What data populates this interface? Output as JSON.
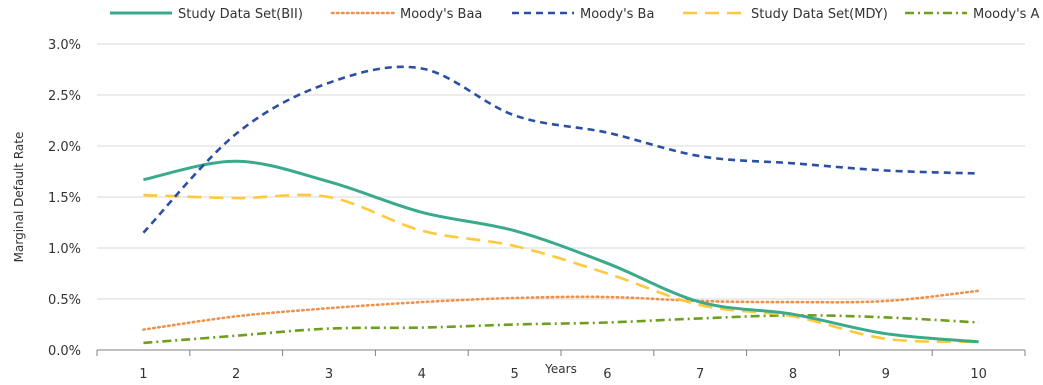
{
  "chart_data": {
    "type": "line",
    "xlabel": "Years",
    "ylabel": "Marginal Default Rate",
    "categories": [
      "1",
      "2",
      "3",
      "4",
      "5",
      "6",
      "7",
      "8",
      "9",
      "10"
    ],
    "ylim": [
      0,
      0.03
    ],
    "yticks": [
      "0.0%",
      "0.5%",
      "1.0%",
      "1.5%",
      "2.0%",
      "2.5%",
      "3.0%"
    ],
    "legend_position": "top",
    "gridlines": "horizontal",
    "series": [
      {
        "name": "Study Data Set(BII)",
        "color": "#3aaa8c",
        "style": "solid",
        "values": [
          0.0167,
          0.0185,
          0.0165,
          0.0135,
          0.0117,
          0.0085,
          0.0047,
          0.0035,
          0.0016,
          0.0008
        ]
      },
      {
        "name": "Moody's Baa",
        "color": "#f0914a",
        "style": "dotted",
        "values": [
          0.002,
          0.0033,
          0.0041,
          0.0047,
          0.0051,
          0.0052,
          0.0048,
          0.0047,
          0.0048,
          0.0058
        ]
      },
      {
        "name": "Moody's Ba",
        "color": "#2b4fa2",
        "style": "dashed",
        "values": [
          0.0115,
          0.0212,
          0.0262,
          0.0276,
          0.023,
          0.0213,
          0.019,
          0.0183,
          0.0176,
          0.0173
        ]
      },
      {
        "name": "Study Data Set(MDY)",
        "color": "#ffc83d",
        "style": "longdash",
        "values": [
          0.0152,
          0.0149,
          0.015,
          0.0117,
          0.0102,
          0.0075,
          0.0044,
          0.0033,
          0.0011,
          0.0008
        ]
      },
      {
        "name": "Moody's A",
        "color": "#6e9e1c",
        "style": "dashdot",
        "values": [
          0.0007,
          0.0014,
          0.0021,
          0.0022,
          0.0025,
          0.0027,
          0.0031,
          0.0034,
          0.0032,
          0.0027
        ]
      }
    ]
  }
}
